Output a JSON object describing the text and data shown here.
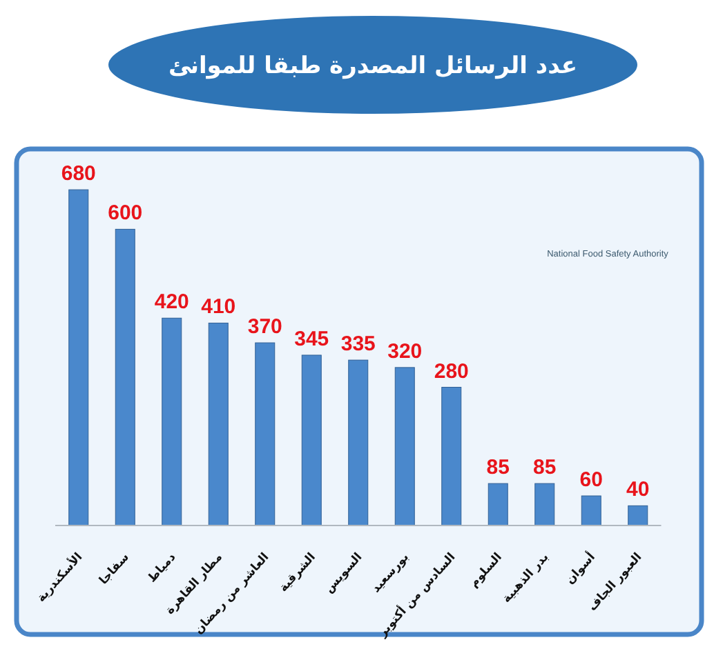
{
  "chart_data": {
    "type": "bar",
    "title": "عدد الرسائل المصدرة طبقا للموانئ",
    "categories": [
      "الأسكندرية",
      "سفاجا",
      "دمياط",
      "مطار القاهرة",
      "العاشر من رمضان",
      "الشرقية",
      "السويس",
      "بورسعيد",
      "السادس من أكتوبر",
      "السلوم",
      "بدر الذهبية",
      "أسوان",
      "العبور الجاف"
    ],
    "values": [
      680,
      600,
      420,
      410,
      370,
      345,
      335,
      320,
      280,
      85,
      85,
      60,
      40
    ],
    "color": "#4a88cc",
    "data_labels": true,
    "tick_labels": "x",
    "annotations": [
      "National Food Safety Authority"
    ]
  }
}
